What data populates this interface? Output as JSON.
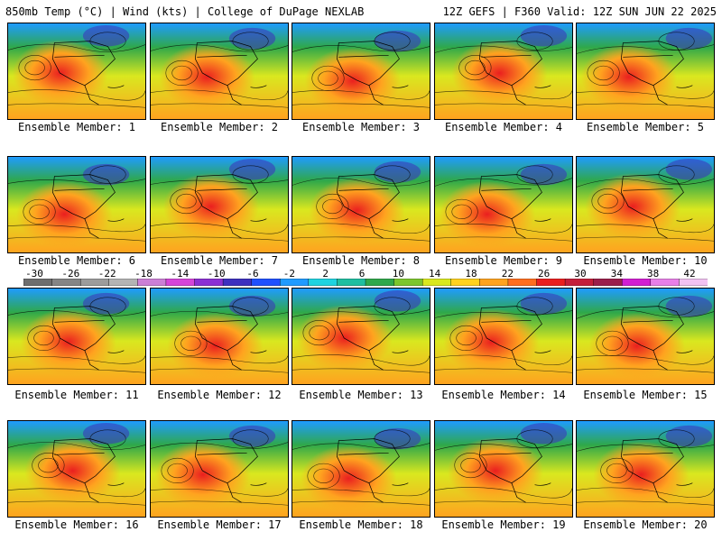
{
  "header": {
    "left": "850mb Temp (°C) | Wind (kts) | College of DuPage NEXLAB",
    "right": "12Z GEFS | F360 Valid: 12Z SUN JUN 22 2025"
  },
  "members": [
    {
      "label": "Ensemble Member: 1"
    },
    {
      "label": "Ensemble Member: 2"
    },
    {
      "label": "Ensemble Member: 3"
    },
    {
      "label": "Ensemble Member: 4"
    },
    {
      "label": "Ensemble Member: 5"
    },
    {
      "label": "Ensemble Member: 6"
    },
    {
      "label": "Ensemble Member: 7"
    },
    {
      "label": "Ensemble Member: 8"
    },
    {
      "label": "Ensemble Member: 9"
    },
    {
      "label": "Ensemble Member: 10"
    },
    {
      "label": "Ensemble Member: 11"
    },
    {
      "label": "Ensemble Member: 12"
    },
    {
      "label": "Ensemble Member: 13"
    },
    {
      "label": "Ensemble Member: 14"
    },
    {
      "label": "Ensemble Member: 15"
    },
    {
      "label": "Ensemble Member: 16"
    },
    {
      "label": "Ensemble Member: 17"
    },
    {
      "label": "Ensemble Member: 18"
    },
    {
      "label": "Ensemble Member: 19"
    },
    {
      "label": "Ensemble Member: 20"
    }
  ],
  "colorbar": {
    "ticks": [
      "-30",
      "-26",
      "-22",
      "-18",
      "-14",
      "-10",
      "-6",
      "-2",
      "2",
      "6",
      "10",
      "14",
      "18",
      "22",
      "26",
      "30",
      "34",
      "38",
      "42"
    ],
    "colors": [
      "#6e6e6e",
      "#858585",
      "#9c9c9c",
      "#b4b4b4",
      "#cc7fd6",
      "#d545d9",
      "#8b2fd3",
      "#3d2fbf",
      "#1f50ff",
      "#1f9bff",
      "#1fd3e0",
      "#1fbfa0",
      "#2fa84a",
      "#7cc62d",
      "#d9e81f",
      "#ffd21f",
      "#ffa31f",
      "#ff6e1f",
      "#ea1f1f",
      "#c41f3a",
      "#9b1f4a",
      "#d21fd2",
      "#e87fe8",
      "#f2c2f2"
    ]
  },
  "map_colors": {
    "ocean_cold": "#1f9bff",
    "warm": "#ffa31f",
    "hot": "#ea1f1f",
    "mild": "#d9e81f",
    "cool": "#2fa84a"
  }
}
